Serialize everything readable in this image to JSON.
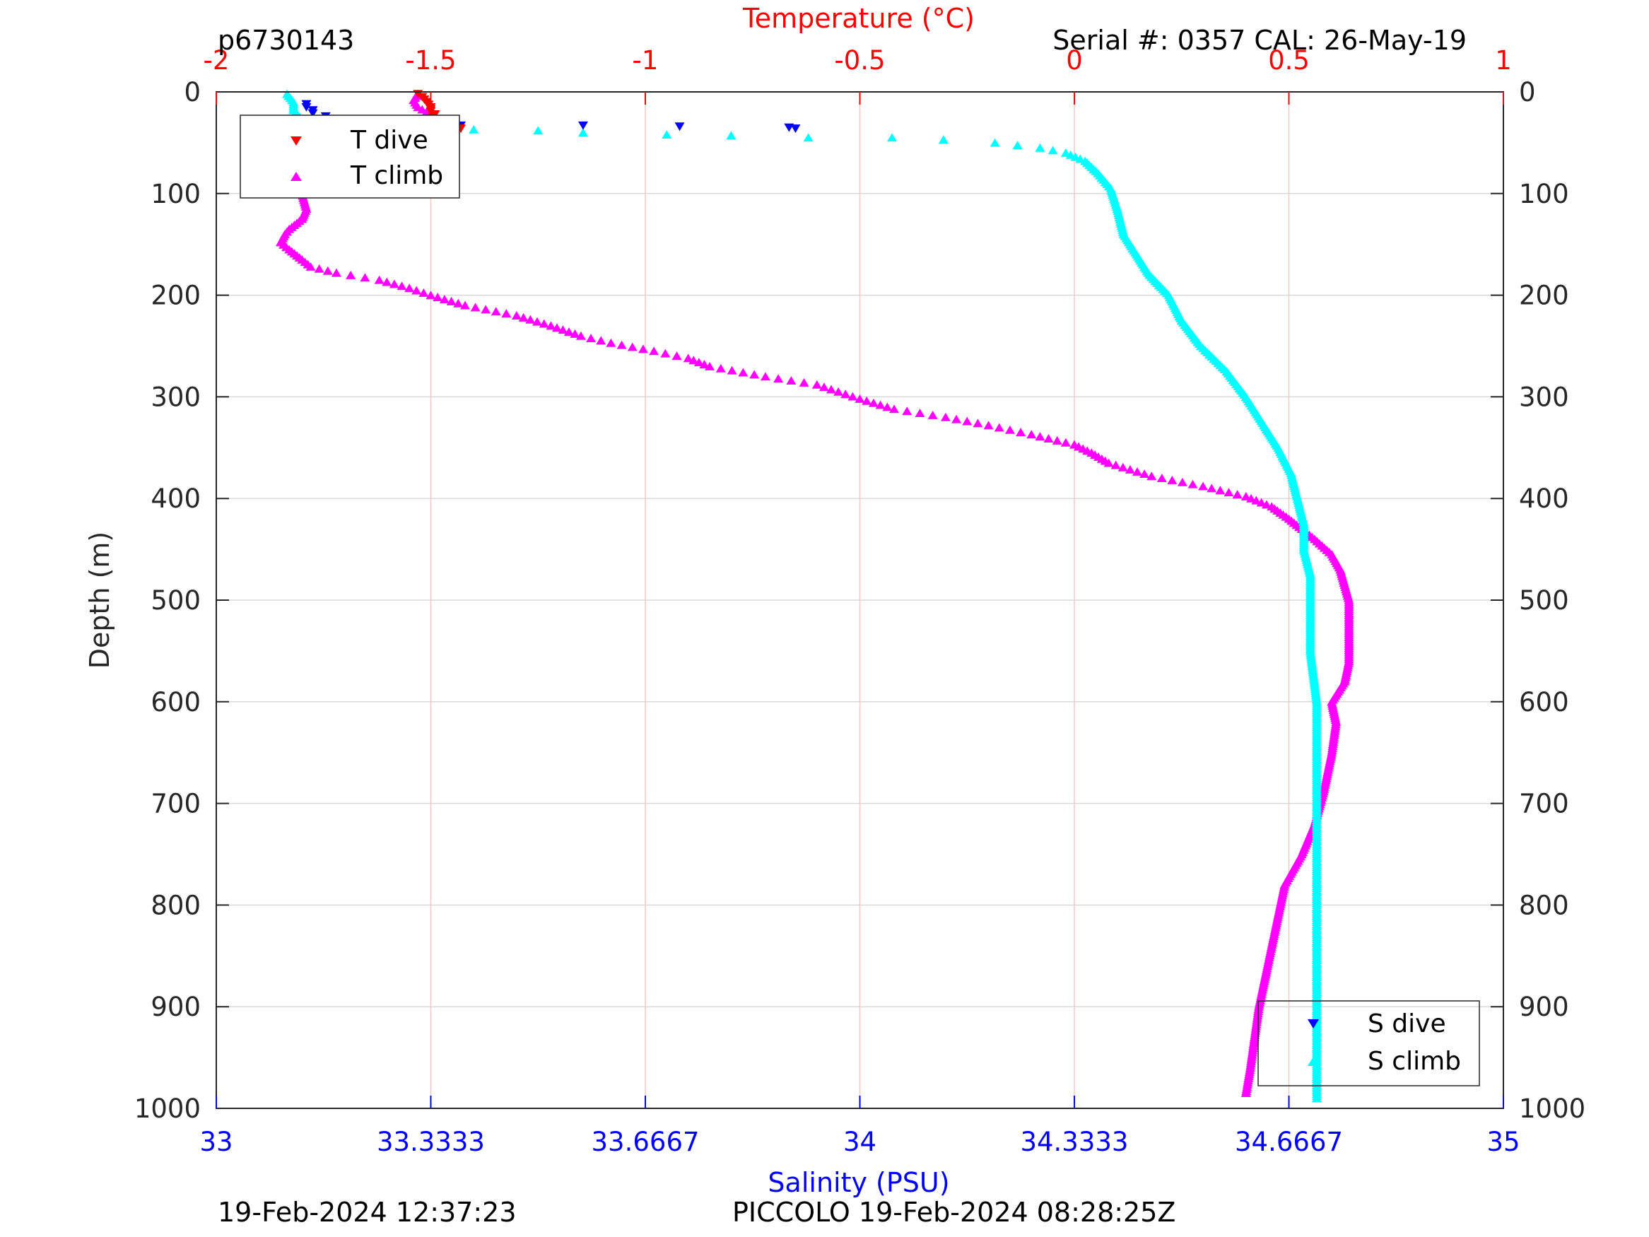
{
  "header": {
    "profile_id": "p6730143",
    "serial": "Serial #: 0357  CAL: 26-May-19"
  },
  "footer": {
    "left_timestamp": "19-Feb-2024 12:37:23",
    "center_text": "PICCOLO 19-Feb-2024 08:28:25Z"
  },
  "colors": {
    "temperature_axis": "#ff0000",
    "salinity_axis": "#0000ff",
    "t_dive": "#ff0000",
    "t_climb": "#ff00ff",
    "s_dive": "#0000ff",
    "s_climb": "#00ffff",
    "grid": "#d9d9d9",
    "temp_grid": "#f2c8c8"
  },
  "chart_data": {
    "type": "scatter",
    "top_axis": {
      "label": "Temperature (°C)",
      "range": [
        -2,
        1
      ],
      "ticks": [
        "-2",
        "-1.5",
        "-1",
        "-0.5",
        "0",
        "0.5",
        "1"
      ]
    },
    "bottom_axis": {
      "label": "Salinity (PSU)",
      "range": [
        33,
        35
      ],
      "ticks": [
        "33",
        "33.3333",
        "33.6667",
        "34",
        "34.3333",
        "34.6667",
        "35"
      ]
    },
    "y_axis": {
      "label": "Depth (m)",
      "range": [
        0,
        1000
      ],
      "reversed": true,
      "ticks": [
        "0",
        "100",
        "200",
        "300",
        "400",
        "500",
        "600",
        "700",
        "800",
        "900",
        "1000"
      ]
    },
    "grid": true,
    "legend_temperature": {
      "placement": "top-left",
      "entries": [
        "T dive",
        "T climb"
      ]
    },
    "legend_salinity": {
      "placement": "bottom-right",
      "entries": [
        "S dive",
        "S climb"
      ]
    },
    "series": [
      {
        "name": "T dive",
        "axis": "temperature",
        "marker": "triangle-down",
        "points": [
          [
            -1.53,
            2
          ],
          [
            -1.52,
            5
          ],
          [
            -1.51,
            10
          ],
          [
            -1.5,
            15
          ],
          [
            -1.5,
            19
          ],
          [
            -1.49,
            22
          ],
          [
            -1.5,
            26
          ],
          [
            -1.48,
            30
          ],
          [
            -1.46,
            33
          ],
          [
            -1.43,
            36
          ]
        ]
      },
      {
        "name": "T climb",
        "axis": "temperature",
        "marker": "triangle-up",
        "points": [
          [
            -1.53,
            2
          ],
          [
            -1.54,
            8
          ],
          [
            -1.53,
            15
          ],
          [
            -1.5,
            22
          ],
          [
            -1.48,
            28
          ],
          [
            -1.46,
            34
          ],
          [
            -1.45,
            40
          ],
          [
            -1.47,
            45
          ],
          [
            -1.58,
            55
          ],
          [
            -1.72,
            68
          ],
          [
            -1.78,
            82
          ],
          [
            -1.8,
            92
          ],
          [
            -1.8,
            100
          ],
          [
            -1.79,
            115
          ],
          [
            -1.8,
            125
          ],
          [
            -1.83,
            135
          ],
          [
            -1.84,
            140
          ],
          [
            -1.85,
            148
          ],
          [
            -1.83,
            155
          ],
          [
            -1.8,
            165
          ],
          [
            -1.78,
            172
          ],
          [
            -1.72,
            178
          ],
          [
            -1.62,
            185
          ],
          [
            -1.55,
            193
          ],
          [
            -1.5,
            200
          ],
          [
            -1.42,
            210
          ],
          [
            -1.3,
            220
          ],
          [
            -1.22,
            230
          ],
          [
            -1.15,
            240
          ],
          [
            -1.08,
            247
          ],
          [
            -0.98,
            255
          ],
          [
            -0.9,
            262
          ],
          [
            -0.85,
            270
          ],
          [
            -0.72,
            280
          ],
          [
            -0.6,
            288
          ],
          [
            -0.55,
            295
          ],
          [
            -0.5,
            302
          ],
          [
            -0.42,
            312
          ],
          [
            -0.3,
            320
          ],
          [
            -0.2,
            328
          ],
          [
            -0.1,
            337
          ],
          [
            0.0,
            347
          ],
          [
            0.04,
            355
          ],
          [
            0.08,
            365
          ],
          [
            0.18,
            378
          ],
          [
            0.3,
            388
          ],
          [
            0.4,
            398
          ],
          [
            0.46,
            408
          ],
          [
            0.5,
            420
          ],
          [
            0.56,
            440
          ],
          [
            0.6,
            455
          ],
          [
            0.62,
            470
          ],
          [
            0.64,
            500
          ],
          [
            0.64,
            530
          ],
          [
            0.64,
            560
          ],
          [
            0.63,
            580
          ],
          [
            0.6,
            600
          ],
          [
            0.61,
            620
          ],
          [
            0.6,
            650
          ],
          [
            0.58,
            690
          ],
          [
            0.56,
            720
          ],
          [
            0.53,
            750
          ],
          [
            0.49,
            780
          ],
          [
            0.47,
            820
          ],
          [
            0.45,
            860
          ],
          [
            0.43,
            900
          ],
          [
            0.42,
            930
          ],
          [
            0.41,
            960
          ],
          [
            0.4,
            985
          ]
        ]
      },
      {
        "name": "S dive",
        "axis": "salinity",
        "marker": "triangle-down",
        "points": [
          [
            33.14,
            12
          ],
          [
            33.14,
            15
          ],
          [
            33.15,
            18
          ],
          [
            33.15,
            21
          ],
          [
            33.17,
            24
          ],
          [
            33.21,
            28
          ],
          [
            33.25,
            30
          ],
          [
            33.3,
            32
          ],
          [
            33.38,
            33
          ],
          [
            33.57,
            33
          ],
          [
            33.72,
            34
          ],
          [
            33.89,
            35
          ],
          [
            33.9,
            36
          ]
        ]
      },
      {
        "name": "S climb",
        "axis": "salinity",
        "marker": "triangle-up",
        "points": [
          [
            33.11,
            2
          ],
          [
            33.12,
            10
          ],
          [
            33.12,
            18
          ],
          [
            33.13,
            25
          ],
          [
            33.15,
            30
          ],
          [
            33.25,
            34
          ],
          [
            33.4,
            37
          ],
          [
            33.5,
            38
          ],
          [
            33.57,
            40
          ],
          [
            33.7,
            42
          ],
          [
            33.8,
            43
          ],
          [
            33.92,
            45
          ],
          [
            34.05,
            45
          ],
          [
            34.13,
            47
          ],
          [
            34.21,
            50
          ],
          [
            34.28,
            55
          ],
          [
            34.32,
            60
          ],
          [
            34.35,
            68
          ],
          [
            34.37,
            80
          ],
          [
            34.39,
            95
          ],
          [
            34.4,
            115
          ],
          [
            34.41,
            140
          ],
          [
            34.43,
            160
          ],
          [
            34.45,
            180
          ],
          [
            34.48,
            200
          ],
          [
            34.5,
            225
          ],
          [
            34.53,
            250
          ],
          [
            34.57,
            275
          ],
          [
            34.6,
            300
          ],
          [
            34.63,
            330
          ],
          [
            34.65,
            350
          ],
          [
            34.67,
            375
          ],
          [
            34.68,
            400
          ],
          [
            34.69,
            425
          ],
          [
            34.69,
            450
          ],
          [
            34.7,
            475
          ],
          [
            34.7,
            500
          ],
          [
            34.7,
            550
          ],
          [
            34.71,
            600
          ],
          [
            34.71,
            650
          ],
          [
            34.71,
            700
          ],
          [
            34.71,
            750
          ],
          [
            34.71,
            800
          ],
          [
            34.71,
            850
          ],
          [
            34.71,
            900
          ],
          [
            34.71,
            950
          ],
          [
            34.71,
            990
          ]
        ]
      }
    ]
  }
}
